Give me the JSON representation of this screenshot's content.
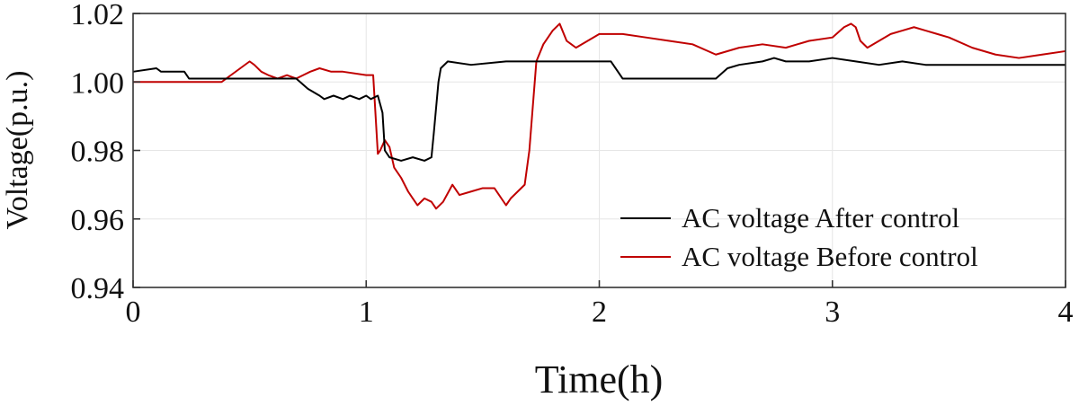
{
  "chart_data": {
    "type": "line",
    "title": "",
    "xlabel": "Time(h)",
    "ylabel": "Voltage(p.u.)",
    "xlim": [
      0,
      4
    ],
    "ylim": [
      0.94,
      1.02
    ],
    "xticks": [
      0,
      1,
      2,
      3,
      4
    ],
    "xtick_labels": [
      "0",
      "1",
      "2",
      "3",
      "4"
    ],
    "yticks": [
      0.94,
      0.96,
      0.98,
      1.0,
      1.02
    ],
    "ytick_labels": [
      "0.94",
      "0.96",
      "0.98",
      "1.00",
      "1.02"
    ],
    "grid": true,
    "legend_position": "lower-right",
    "series": [
      {
        "name": "AC voltage After control",
        "color": "#000000",
        "x": [
          0,
          0.1,
          0.12,
          0.22,
          0.24,
          0.7,
          0.75,
          0.8,
          0.82,
          0.86,
          0.9,
          0.93,
          0.97,
          1.0,
          1.02,
          1.05,
          1.07,
          1.08,
          1.1,
          1.15,
          1.2,
          1.25,
          1.28,
          1.29,
          1.31,
          1.32,
          1.35,
          1.45,
          1.6,
          1.7,
          1.9,
          2.0,
          2.05,
          2.08,
          2.1,
          2.2,
          2.3,
          2.5,
          2.55,
          2.6,
          2.7,
          2.75,
          2.8,
          2.9,
          3.0,
          3.1,
          3.2,
          3.3,
          3.4,
          3.5,
          4.0
        ],
        "values": [
          1.003,
          1.004,
          1.003,
          1.003,
          1.001,
          1.001,
          0.998,
          0.996,
          0.995,
          0.996,
          0.995,
          0.996,
          0.995,
          0.996,
          0.995,
          0.996,
          0.991,
          0.98,
          0.978,
          0.977,
          0.978,
          0.977,
          0.978,
          0.985,
          1.0,
          1.004,
          1.006,
          1.005,
          1.006,
          1.006,
          1.006,
          1.006,
          1.006,
          1.003,
          1.001,
          1.001,
          1.001,
          1.001,
          1.004,
          1.005,
          1.006,
          1.007,
          1.006,
          1.006,
          1.007,
          1.006,
          1.005,
          1.006,
          1.005,
          1.005,
          1.005
        ]
      },
      {
        "name": "AC voltage Before control",
        "color": "#c00000",
        "x": [
          0,
          0.2,
          0.38,
          0.42,
          0.46,
          0.5,
          0.52,
          0.55,
          0.58,
          0.62,
          0.66,
          0.7,
          0.73,
          0.76,
          0.8,
          0.85,
          0.9,
          1.0,
          1.03,
          1.05,
          1.06,
          1.08,
          1.1,
          1.12,
          1.15,
          1.18,
          1.2,
          1.22,
          1.25,
          1.28,
          1.3,
          1.33,
          1.37,
          1.4,
          1.45,
          1.5,
          1.55,
          1.6,
          1.62,
          1.65,
          1.68,
          1.7,
          1.73,
          1.76,
          1.8,
          1.83,
          1.86,
          1.9,
          2.0,
          2.1,
          2.2,
          2.3,
          2.4,
          2.5,
          2.6,
          2.7,
          2.8,
          2.9,
          3.0,
          3.05,
          3.08,
          3.1,
          3.12,
          3.15,
          3.2,
          3.25,
          3.3,
          3.35,
          3.4,
          3.45,
          3.5,
          3.6,
          3.7,
          3.8,
          3.9,
          4.0
        ],
        "values": [
          1.0,
          1.0,
          1.0,
          1.002,
          1.004,
          1.006,
          1.005,
          1.003,
          1.002,
          1.001,
          1.002,
          1.001,
          1.002,
          1.003,
          1.004,
          1.003,
          1.003,
          1.002,
          1.002,
          0.979,
          0.98,
          0.983,
          0.981,
          0.975,
          0.972,
          0.968,
          0.966,
          0.964,
          0.966,
          0.965,
          0.963,
          0.965,
          0.97,
          0.967,
          0.968,
          0.969,
          0.969,
          0.964,
          0.966,
          0.968,
          0.97,
          0.98,
          1.006,
          1.011,
          1.015,
          1.017,
          1.012,
          1.01,
          1.014,
          1.014,
          1.013,
          1.012,
          1.011,
          1.008,
          1.01,
          1.011,
          1.01,
          1.012,
          1.013,
          1.016,
          1.017,
          1.016,
          1.012,
          1.01,
          1.012,
          1.014,
          1.015,
          1.016,
          1.015,
          1.014,
          1.013,
          1.01,
          1.008,
          1.007,
          1.008,
          1.009
        ]
      }
    ]
  }
}
